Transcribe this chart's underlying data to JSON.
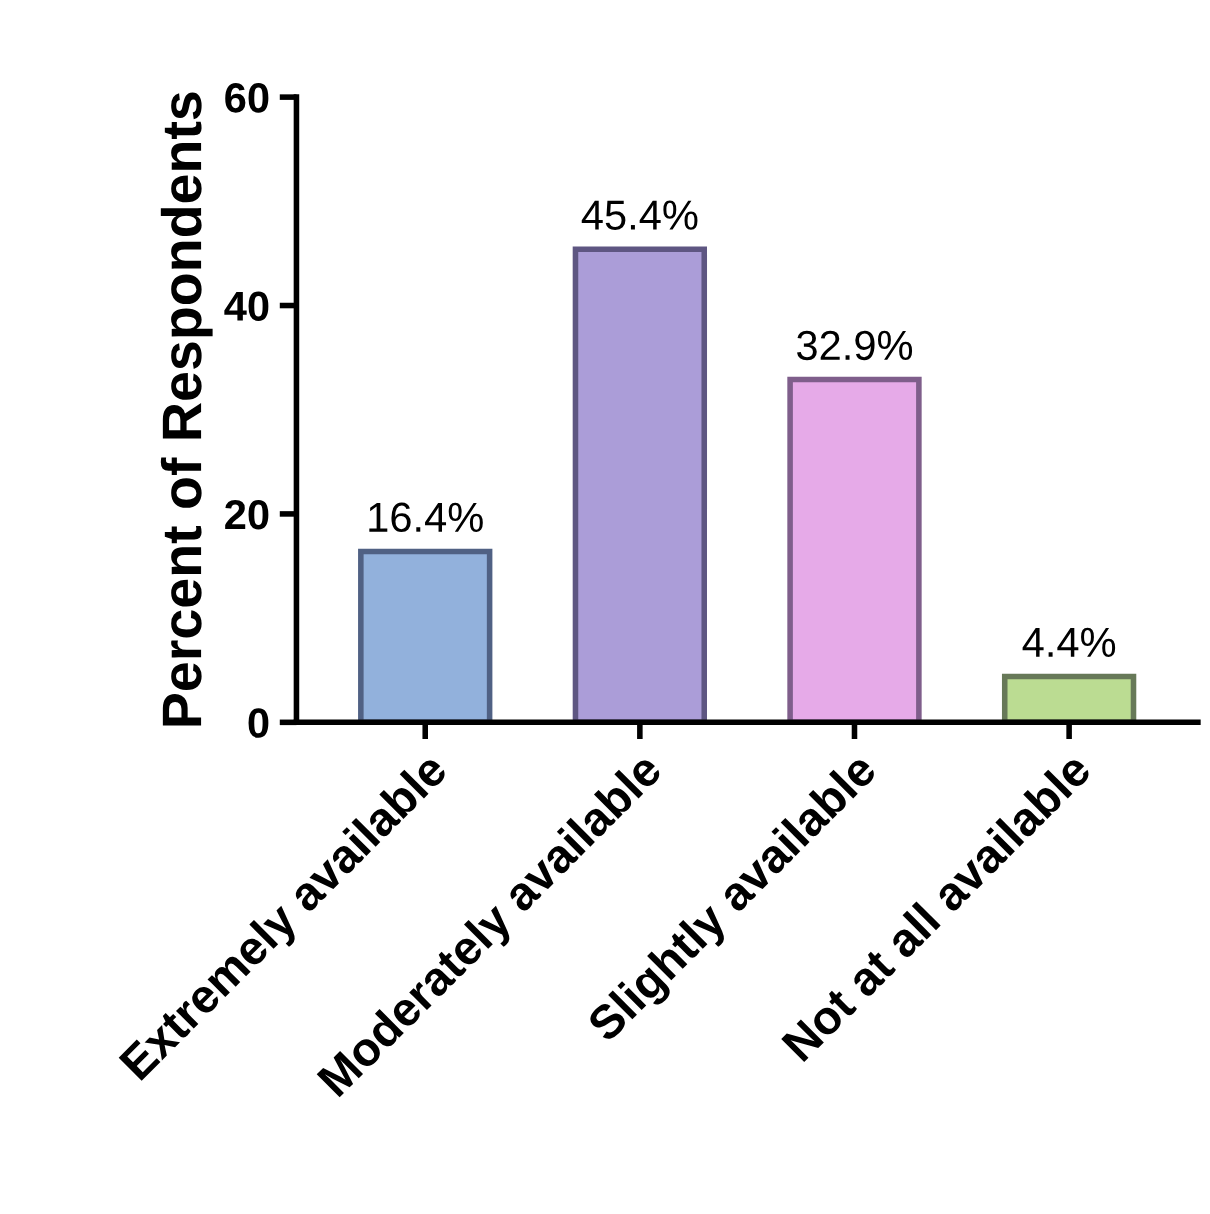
{
  "chart_data": {
    "type": "bar",
    "ylabel": "Percent of Respondents",
    "categories": [
      "Extremely available",
      "Moderately available",
      "Slightly available",
      "Not at all available"
    ],
    "values": [
      16.4,
      45.4,
      32.9,
      4.4
    ],
    "colors": [
      "#92b1dc",
      "#ab9dd8",
      "#e6aae8",
      "#bbdc92"
    ],
    "value_labels": [
      "16.4%",
      "45.4%",
      "32.9%",
      "4.4%"
    ],
    "ylim": [
      0,
      60
    ],
    "yticks": [
      0,
      20,
      40,
      60
    ],
    "grid": false,
    "legend": false
  }
}
